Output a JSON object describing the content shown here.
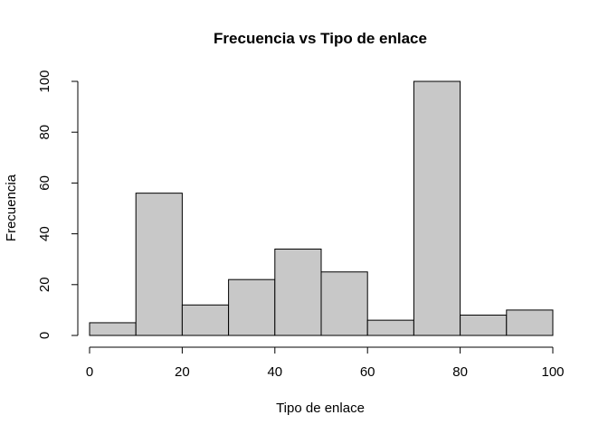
{
  "chart_data": {
    "type": "bar",
    "title": "Frecuencia vs Tipo de enlace",
    "xlabel": "Tipo de enlace",
    "ylabel": "Frecuencia",
    "bins": [
      {
        "from": 0,
        "to": 10,
        "count": 5
      },
      {
        "from": 10,
        "to": 20,
        "count": 56
      },
      {
        "from": 20,
        "to": 30,
        "count": 12
      },
      {
        "from": 30,
        "to": 40,
        "count": 22
      },
      {
        "from": 40,
        "to": 50,
        "count": 34
      },
      {
        "from": 50,
        "to": 60,
        "count": 25
      },
      {
        "from": 60,
        "to": 70,
        "count": 6
      },
      {
        "from": 70,
        "to": 80,
        "count": 100
      },
      {
        "from": 80,
        "to": 90,
        "count": 8
      },
      {
        "from": 90,
        "to": 100,
        "count": 10
      }
    ],
    "xlim": [
      0,
      100
    ],
    "ylim": [
      0,
      100
    ],
    "xticks": [
      "0",
      "20",
      "40",
      "60",
      "80",
      "100"
    ],
    "yticks": [
      "0",
      "20",
      "40",
      "60",
      "80",
      "100"
    ],
    "bar_color": "#c8c8c8",
    "grid": false
  }
}
